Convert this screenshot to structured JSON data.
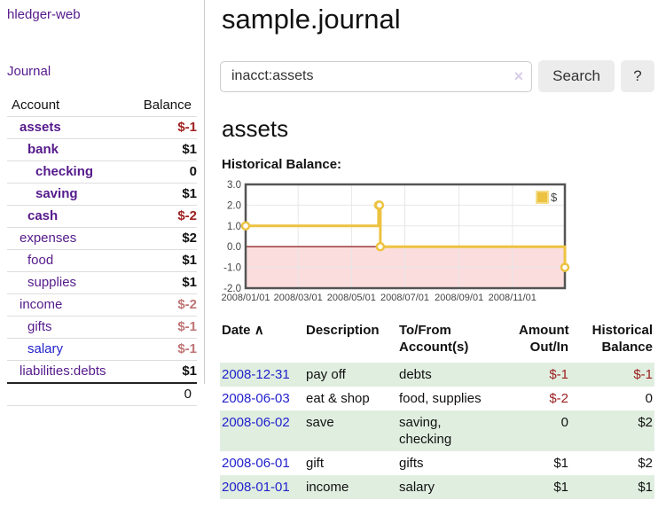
{
  "app": {
    "title": "hledger-web",
    "nav_journal": "Journal"
  },
  "sidebar": {
    "col_account": "Account",
    "col_balance": "Balance",
    "accounts": [
      {
        "name": "assets",
        "level": 0,
        "balance": "$-1",
        "bold": true,
        "neg": "strong",
        "visited": true
      },
      {
        "name": "bank",
        "level": 1,
        "balance": "$1",
        "bold": true,
        "neg": "none",
        "visited": true
      },
      {
        "name": "checking",
        "level": 2,
        "balance": "0",
        "bold": true,
        "neg": "none",
        "visited": true
      },
      {
        "name": "saving",
        "level": 2,
        "balance": "$1",
        "bold": true,
        "neg": "none",
        "visited": true
      },
      {
        "name": "cash",
        "level": 1,
        "balance": "$-2",
        "bold": true,
        "neg": "strong",
        "visited": true
      },
      {
        "name": "expenses",
        "level": 0,
        "balance": "$2",
        "bold": false,
        "neg": "none",
        "visited": true
      },
      {
        "name": "food",
        "level": 1,
        "balance": "$1",
        "bold": false,
        "neg": "none",
        "visited": true
      },
      {
        "name": "supplies",
        "level": 1,
        "balance": "$1",
        "bold": false,
        "neg": "none",
        "visited": true
      },
      {
        "name": "income",
        "level": 0,
        "balance": "$-2",
        "bold": false,
        "neg": "soft",
        "visited": true
      },
      {
        "name": "gifts",
        "level": 1,
        "balance": "$-1",
        "bold": false,
        "neg": "soft",
        "visited": true
      },
      {
        "name": "salary",
        "level": 1,
        "balance": "$-1",
        "bold": false,
        "neg": "soft",
        "visited": false
      },
      {
        "name": "liabilities:debts",
        "level": 0,
        "balance": "$1",
        "bold": false,
        "neg": "none",
        "visited": true
      }
    ],
    "total": "0"
  },
  "header": {
    "title": "sample.journal"
  },
  "search": {
    "value": "inacct:assets",
    "clear_icon": "×",
    "button_label": "Search",
    "help_label": "?"
  },
  "account_page": {
    "heading": "assets",
    "chart_label": "Historical Balance:"
  },
  "chart_data": {
    "type": "line",
    "step": true,
    "title": "Historical Balance:",
    "series": [
      {
        "name": "$",
        "color": "#EDC240",
        "points": [
          [
            "2008-01-01",
            1
          ],
          [
            "2008-06-01",
            2
          ],
          [
            "2008-06-02",
            2
          ],
          [
            "2008-06-03",
            0
          ],
          [
            "2008-12-31",
            -1
          ]
        ]
      }
    ],
    "xlim": [
      "2008-01-01",
      "2008-12-31"
    ],
    "ylim": [
      -2,
      3
    ],
    "yticks": [
      3.0,
      2.0,
      1.0,
      0.0,
      -1.0,
      -2.0
    ],
    "xticks": [
      "2008/01/01",
      "2008/03/01",
      "2008/05/01",
      "2008/07/01",
      "2008/09/01",
      "2008/11/01"
    ],
    "legend_position": "top-right",
    "grid": true,
    "colors": {
      "grid": "#e7e7e7",
      "border": "#545454",
      "negative_region": "#fbdddd",
      "zero_line": "#800000",
      "tick_text": "#444444"
    }
  },
  "register": {
    "columns": [
      "Date",
      "Description",
      "To/From Account(s)",
      "Amount Out/In",
      "Historical Balance"
    ],
    "sort_icon": "∧",
    "rows": [
      {
        "date": "2008-12-31",
        "description": "pay off",
        "accounts": "debts",
        "amount": "$-1",
        "balance": "$-1"
      },
      {
        "date": "2008-06-03",
        "description": "eat & shop",
        "accounts": "food, supplies",
        "amount": "$-2",
        "balance": "0"
      },
      {
        "date": "2008-06-02",
        "description": "save",
        "accounts": "saving, checking",
        "amount": "0",
        "balance": "$2"
      },
      {
        "date": "2008-06-01",
        "description": "gift",
        "accounts": "gifts",
        "amount": "$1",
        "balance": "$2"
      },
      {
        "date": "2008-01-01",
        "description": "income",
        "accounts": "salary",
        "amount": "$1",
        "balance": "$1"
      }
    ]
  },
  "colors": {
    "link_visited_purple": "#551a8b",
    "link_unvisited_blue": "#2222cc",
    "negative_strong_red": "#a02020",
    "negative_soft_red": "#bf7575",
    "register_negative_red": "#9b1c1c",
    "row_stripe_green": "#e0eee0",
    "series_yellow": "#EDC240",
    "button_gray": "#ececec"
  }
}
